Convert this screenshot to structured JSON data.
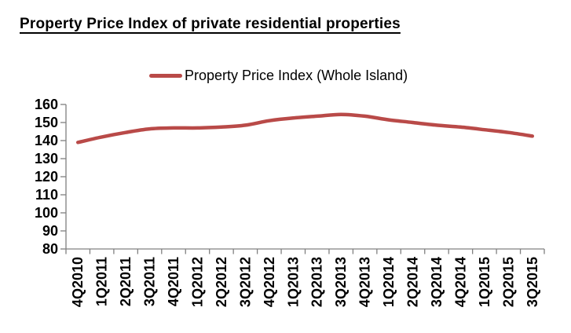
{
  "title": "Property Price Index of private residential properties",
  "legend": {
    "label": "Property Price Index (Whole Island)"
  },
  "colors": {
    "line": "#b94a48",
    "axis": "#808080",
    "text": "#000000",
    "background": "#ffffff"
  },
  "chart_data": {
    "type": "line",
    "title": "Property Price Index of private residential properties",
    "xlabel": "",
    "ylabel": "",
    "ylim": [
      80,
      160
    ],
    "ytick_step": 10,
    "grid": false,
    "legend_position": "top",
    "x_label_rotation": -90,
    "categories": [
      "4Q2010",
      "1Q2011",
      "2Q2011",
      "3Q2011",
      "4Q2011",
      "1Q2012",
      "2Q2012",
      "3Q2012",
      "4Q2012",
      "1Q2013",
      "2Q2013",
      "3Q2013",
      "4Q2013",
      "1Q2014",
      "2Q2014",
      "3Q2014",
      "4Q2014",
      "1Q2015",
      "2Q2015",
      "3Q2015"
    ],
    "series": [
      {
        "name": "Property Price Index (Whole Island)",
        "values": [
          139.0,
          142.0,
          144.5,
          146.5,
          147.0,
          147.0,
          147.5,
          148.5,
          151.0,
          152.5,
          153.5,
          154.5,
          153.5,
          151.5,
          150.0,
          148.5,
          147.5,
          146.0,
          144.5,
          142.5
        ]
      }
    ]
  }
}
